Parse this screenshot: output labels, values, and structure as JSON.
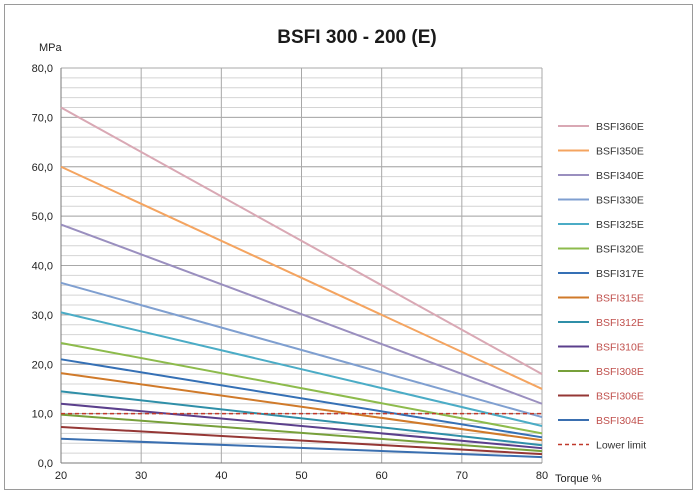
{
  "chart_data": {
    "type": "line",
    "title": "BSFI 300 - 200 (E)",
    "ylabel": "MPa",
    "xlabel": "Torque %",
    "x": [
      20,
      80
    ],
    "xlim": [
      20,
      80
    ],
    "ylim": [
      0,
      80
    ],
    "xticks": [
      "20",
      "30",
      "40",
      "50",
      "60",
      "70",
      "80"
    ],
    "yticks": [
      "0,0",
      "10,0",
      "20,0",
      "30,0",
      "40,0",
      "50,0",
      "60,0",
      "70,0",
      "80,0"
    ],
    "grid": true,
    "legend_position": "right",
    "series": [
      {
        "name": "BSFI360E",
        "values": [
          72.0,
          18.0
        ],
        "color": "#d9a8b4",
        "label_color": "#333333"
      },
      {
        "name": "BSFI350E",
        "values": [
          60.0,
          15.0
        ],
        "color": "#f4a460",
        "label_color": "#333333"
      },
      {
        "name": "BSFI340E",
        "values": [
          48.3,
          12.0
        ],
        "color": "#9a8fbf",
        "label_color": "#333333"
      },
      {
        "name": "BSFI330E",
        "values": [
          36.5,
          9.3
        ],
        "color": "#7f9fd0",
        "label_color": "#333333"
      },
      {
        "name": "BSFI325E",
        "values": [
          30.5,
          7.5
        ],
        "color": "#4bacc6",
        "label_color": "#333333"
      },
      {
        "name": "BSFI320E",
        "values": [
          24.3,
          6.0
        ],
        "color": "#8dbb4c",
        "label_color": "#333333"
      },
      {
        "name": "BSFI317E",
        "values": [
          21.0,
          5.2
        ],
        "color": "#3570b5",
        "label_color": "#333333"
      },
      {
        "name": "BSFI315E",
        "values": [
          18.2,
          4.6
        ],
        "color": "#d07a2a",
        "label_color": "#c0504d"
      },
      {
        "name": "BSFI312E",
        "values": [
          14.5,
          3.6
        ],
        "color": "#2f8fa8",
        "label_color": "#c0504d"
      },
      {
        "name": "BSFI310E",
        "values": [
          12.0,
          3.0
        ],
        "color": "#5b3f8c",
        "label_color": "#c0504d"
      },
      {
        "name": "BSFI308E",
        "values": [
          9.8,
          2.4
        ],
        "color": "#77a03a",
        "label_color": "#c0504d"
      },
      {
        "name": "BSFI306E",
        "values": [
          7.3,
          1.8
        ],
        "color": "#953735",
        "label_color": "#c0504d"
      },
      {
        "name": "BSFI304E",
        "values": [
          4.9,
          1.2
        ],
        "color": "#3a6fb0",
        "label_color": "#c0504d"
      }
    ],
    "reference_line": {
      "name": "Lower limit",
      "value": 10.0,
      "color": "#c0392b",
      "style": "dashed",
      "label_color": "#333333"
    }
  }
}
